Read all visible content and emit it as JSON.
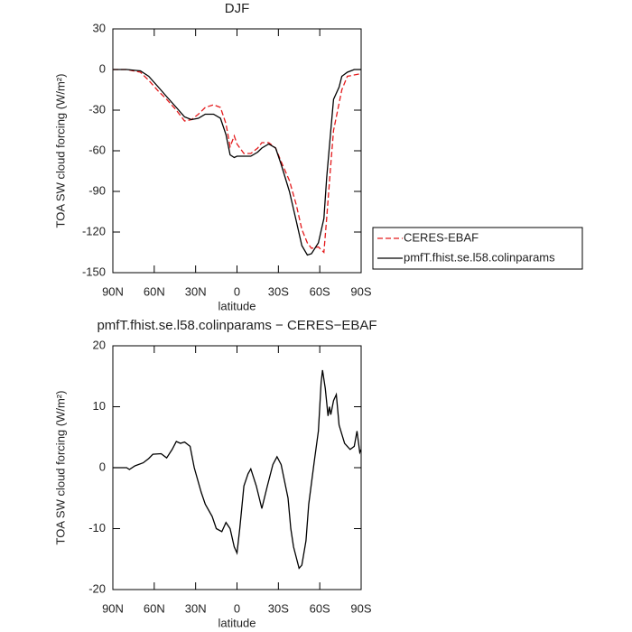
{
  "chart_data": [
    {
      "type": "line",
      "title": "DJF",
      "x_label": "latitude",
      "y_label": "TOA SW cloud forcing (W/m²)",
      "xlim": [
        90,
        -90
      ],
      "ylim": [
        -150,
        30
      ],
      "xticks": [
        {
          "value": 90,
          "label": "90N"
        },
        {
          "value": 60,
          "label": "60N"
        },
        {
          "value": 30,
          "label": "30N"
        },
        0,
        {
          "value": -30,
          "label": "30S"
        },
        {
          "value": -60,
          "label": "60S"
        },
        {
          "value": -90,
          "label": "90S"
        }
      ],
      "yticks": [
        -150,
        -120,
        -90,
        -60,
        -30,
        0,
        30
      ],
      "legend": "right",
      "x": [
        90,
        80,
        70,
        64,
        57,
        51,
        44,
        38,
        33,
        28,
        23,
        17,
        12,
        8,
        5,
        2,
        0,
        -5,
        -10,
        -15,
        -18,
        -23,
        -28,
        -32,
        -38,
        -43,
        -47,
        -51,
        -54,
        -59,
        -63,
        -65,
        -68,
        -70,
        -74,
        -76,
        -80,
        -85,
        -90
      ],
      "series": [
        {
          "name": "CERES-EBAF",
          "color": "#e41a1c",
          "dash": true,
          "values": [
            0,
            0,
            -2,
            -8,
            -16,
            -22,
            -30,
            -38,
            -37,
            -33,
            -28,
            -26,
            -28,
            -40,
            -57,
            -49,
            -55,
            -62,
            -62,
            -58,
            -54,
            -54,
            -58,
            -68,
            -82,
            -100,
            -118,
            -128,
            -132,
            -131,
            -135,
            -110,
            -70,
            -45,
            -25,
            -15,
            -5,
            -4,
            -3
          ]
        },
        {
          "name": "pmfT.fhist.se.l58.colinparams",
          "color": "#000000",
          "dash": false,
          "values": [
            0,
            0,
            -1,
            -5,
            -13,
            -20,
            -28,
            -35,
            -37,
            -36,
            -33,
            -33,
            -36,
            -48,
            -63,
            -65,
            -64,
            -64,
            -64,
            -61,
            -58,
            -55,
            -58,
            -70,
            -90,
            -112,
            -130,
            -137,
            -136,
            -128,
            -110,
            -80,
            -45,
            -22,
            -13,
            -5,
            -2,
            0,
            0
          ]
        }
      ]
    },
    {
      "type": "line",
      "title": "pmfT.fhist.se.l58.colinparams − CERES−EBAF",
      "x_label": "latitude",
      "y_label": "TOA SW cloud forcing (W/m²)",
      "xlim": [
        90,
        -90
      ],
      "ylim": [
        -20,
        20
      ],
      "xticks": [
        {
          "value": 90,
          "label": "90N"
        },
        {
          "value": 60,
          "label": "60N"
        },
        {
          "value": 30,
          "label": "30N"
        },
        0,
        {
          "value": -30,
          "label": "30S"
        },
        {
          "value": -60,
          "label": "60S"
        },
        {
          "value": -90,
          "label": "90S"
        }
      ],
      "yticks": [
        -20,
        -10,
        0,
        10,
        20
      ],
      "color": "#000000",
      "x": [
        90,
        80,
        78,
        74,
        68,
        64,
        61,
        55,
        51,
        47,
        44,
        41,
        38,
        34,
        31,
        26,
        23,
        18,
        15,
        11,
        8,
        5,
        2,
        0,
        -2,
        -5,
        -8,
        -10,
        -14,
        -18,
        -22,
        -26,
        -29,
        -32,
        -37,
        -39,
        -41,
        -45,
        -47,
        -50,
        -52,
        -56,
        -59,
        -61,
        -62,
        -64,
        -66,
        -67,
        -68,
        -70,
        -72,
        -74,
        -76,
        -78,
        -80,
        -82,
        -85,
        -87,
        -89,
        -90
      ],
      "values": [
        0,
        0,
        -0.3,
        0.3,
        0.8,
        1.5,
        2.2,
        2.3,
        1.6,
        3.0,
        4.3,
        4.0,
        4.2,
        3.5,
        0,
        -4,
        -6,
        -8,
        -10,
        -10.5,
        -9,
        -10,
        -13,
        -14,
        -10,
        -3,
        -1,
        -0.2,
        -3,
        -6.7,
        -3,
        0.5,
        1.8,
        0.5,
        -5,
        -10,
        -13,
        -16.5,
        -16,
        -12,
        -6,
        1,
        6,
        14,
        16,
        13,
        8.5,
        10,
        8.7,
        11,
        12,
        7,
        5.5,
        4,
        3.5,
        3,
        3.5,
        6,
        2.5,
        3
      ]
    }
  ]
}
